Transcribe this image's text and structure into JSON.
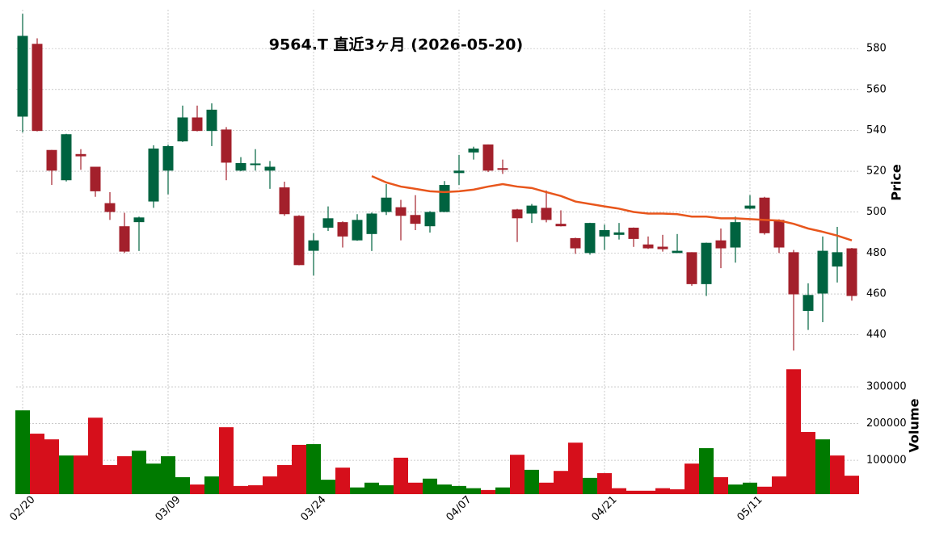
{
  "chart_data": {
    "type": "candlestick",
    "title": "9564.T  直近3ヶ月  (2026-05-20)",
    "ylabel": "Price",
    "volume_label": "Volume",
    "categories": [
      "02/20",
      null,
      null,
      null,
      null,
      null,
      null,
      null,
      null,
      null,
      "03/09",
      null,
      null,
      null,
      null,
      null,
      null,
      null,
      null,
      null,
      "03/24",
      null,
      null,
      null,
      null,
      null,
      null,
      null,
      null,
      null,
      "04/07",
      null,
      null,
      null,
      null,
      null,
      null,
      null,
      null,
      null,
      "04/21",
      null,
      null,
      null,
      null,
      null,
      null,
      null,
      null,
      null,
      "05/11",
      null,
      null,
      null,
      null,
      null,
      null,
      null
    ],
    "open": [
      546.7,
      582.3,
      530.4,
      515.6,
      528.4,
      522.2,
      504.4,
      493.1,
      495.1,
      505.2,
      520.3,
      534.6,
      546.3,
      539.7,
      540.4,
      520.3,
      523.0,
      520.3,
      512.1,
      498.2,
      481.1,
      492.4,
      495.1,
      486.2,
      489.3,
      500.1,
      502.4,
      498.6,
      493.1,
      500.1,
      519.1,
      529.2,
      533.1,
      521.5,
      501.3,
      499.3,
      502.1,
      494.3,
      487.3,
      480.0,
      488.1,
      488.9,
      492.4,
      484.2,
      483.1,
      480.0,
      480.4,
      464.8,
      486.2,
      482.7,
      501.7,
      507.1,
      496.2,
      480.4,
      451.7,
      460.2,
      473.4,
      482.3
    ],
    "high": [
      597,
      585,
      530.4,
      538.3,
      530.8,
      522.2,
      509.8,
      499.7,
      497.8,
      532.7,
      533,
      552.1,
      552.1,
      553.2,
      541.6,
      526.9,
      530.8,
      525,
      514.9,
      498.5,
      489.7,
      502.8,
      495.5,
      499,
      499.8,
      513.7,
      506,
      508.3,
      500.5,
      515.2,
      528,
      532,
      533.1,
      525.7,
      501.6,
      504,
      510.6,
      500.9,
      487.5,
      494.8,
      493.9,
      494.7,
      492.5,
      488.1,
      488.9,
      489.3,
      480.4,
      485.1,
      492,
      497.8,
      508.3,
      507.5,
      496.5,
      481.5,
      465.2,
      488.1,
      492.8,
      482.5
    ],
    "low": [
      539,
      539.5,
      513.3,
      515,
      520.7,
      507.5,
      496.2,
      480,
      481,
      502.1,
      508.7,
      534.3,
      539.5,
      532.3,
      515.6,
      520,
      520.3,
      511.4,
      498.2,
      474,
      469,
      490.8,
      482.7,
      486,
      481,
      498.6,
      486.2,
      491.2,
      490,
      500,
      513.3,
      525.7,
      519.6,
      518.7,
      485.4,
      494.7,
      495,
      493,
      479.6,
      479.2,
      481.5,
      486.6,
      483,
      482,
      480.7,
      480,
      464,
      459,
      472.6,
      475.3,
      501.3,
      489,
      480,
      432.3,
      442.4,
      446.2,
      465.6,
      456.7
    ],
    "close": [
      586.2,
      539.7,
      520.3,
      538.1,
      527.3,
      510.2,
      500.1,
      480.7,
      497.4,
      531.1,
      532.3,
      546.3,
      539.7,
      550.1,
      524.2,
      524.0,
      523.8,
      522.2,
      499.0,
      474.1,
      486.2,
      497.0,
      488.1,
      496.2,
      499.3,
      507.1,
      498.2,
      494.3,
      500.1,
      513.3,
      520.3,
      531.1,
      520.3,
      520.7,
      497.0,
      503.2,
      496.2,
      493.1,
      482.3,
      494.7,
      491.2,
      490.1,
      486.9,
      482.3,
      481.9,
      481.1,
      464.8,
      485.0,
      482.3,
      495.1,
      503.2,
      489.7,
      482.7,
      459.8,
      459.5,
      481.1,
      480.4,
      459.0
    ],
    "volume": [
      236000,
      172500,
      157000,
      113000,
      113000,
      216000,
      87000,
      111000,
      126000,
      91000,
      111000,
      54000,
      34000,
      56000,
      190000,
      30000,
      32000,
      56000,
      87000,
      142000,
      144000,
      47000,
      80000,
      26000,
      39000,
      32000,
      107000,
      39000,
      50000,
      34000,
      30000,
      24000,
      19000,
      26000,
      115000,
      74000,
      39000,
      71000,
      148000,
      52000,
      65000,
      24000,
      17000,
      17000,
      24000,
      21000,
      91000,
      133000,
      54000,
      34000,
      39000,
      28000,
      56000,
      348000,
      177000,
      157000,
      113000,
      58000
    ],
    "ma": [
      null,
      null,
      null,
      null,
      null,
      null,
      null,
      null,
      null,
      null,
      null,
      null,
      null,
      null,
      null,
      null,
      null,
      null,
      null,
      null,
      null,
      null,
      null,
      null,
      517.6,
      514.5,
      512.5,
      511.4,
      510.2,
      509.8,
      510.2,
      511,
      512.5,
      513.7,
      512.5,
      511.8,
      509.8,
      507.9,
      505.2,
      504,
      502.8,
      501.7,
      500.1,
      499.3,
      499.3,
      499,
      497.8,
      497.8,
      497,
      497,
      496.6,
      496.2,
      495.9,
      494.3,
      492,
      490.4,
      488.5,
      486.2
    ],
    "ylim": [
      430,
      599
    ],
    "yticks": [
      440,
      460,
      480,
      500,
      520,
      540,
      560,
      580
    ],
    "volume_ylim": [
      7700,
      386000
    ],
    "volume_ticks": [
      100000,
      200000,
      300000
    ],
    "up_color": "#006340",
    "down_color": "#a3202b",
    "volume_up_color": "#007a00",
    "volume_down_color": "#d60f1b",
    "ma_color": "#e8561c",
    "grid": true
  }
}
